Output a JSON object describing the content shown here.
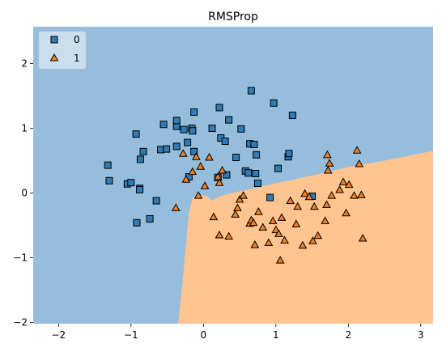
{
  "chart_data": {
    "type": "scatter",
    "title": "RMSProp",
    "xlabel": "",
    "ylabel": "",
    "xlim": [
      -2.35,
      3.17
    ],
    "ylim": [
      -2.02,
      2.57
    ],
    "x_ticks": [
      -2,
      -1,
      0,
      1,
      2,
      3
    ],
    "y_ticks": [
      -2,
      -1,
      0,
      1,
      2
    ],
    "x_tick_labels": [
      "−2",
      "−1",
      "0",
      "1",
      "2",
      "3"
    ],
    "y_tick_labels": [
      "−2",
      "−1",
      "0",
      "1",
      "2"
    ],
    "grid": false,
    "legend_position": "top-left",
    "region_colors": {
      "0": "#96bddc",
      "1": "#ffc490"
    },
    "decision_boundary": [
      [
        -0.35,
        -2.02
      ],
      [
        -0.28,
        -1.3
      ],
      [
        -0.25,
        -0.9
      ],
      [
        -0.2,
        -0.3
      ],
      [
        -0.15,
        -0.08
      ],
      [
        -0.08,
        -0.02
      ],
      [
        0.05,
        -0.05
      ],
      [
        0.12,
        -0.12
      ],
      [
        0.22,
        -0.05
      ],
      [
        0.4,
        0.0
      ],
      [
        0.6,
        0.05
      ],
      [
        1.0,
        0.15
      ],
      [
        1.5,
        0.27
      ],
      [
        2.0,
        0.4
      ],
      [
        2.5,
        0.5
      ],
      [
        3.17,
        0.65
      ]
    ],
    "series": [
      {
        "name": "0",
        "marker": "square",
        "color": "#2f7bb5",
        "points": [
          [
            -1.32,
            0.43
          ],
          [
            -1.3,
            0.19
          ],
          [
            -1.05,
            0.14
          ],
          [
            -1.0,
            0.16
          ],
          [
            -0.93,
            0.91
          ],
          [
            -0.92,
            -0.46
          ],
          [
            -0.88,
            0.07
          ],
          [
            -0.88,
            0.05
          ],
          [
            -0.87,
            0.52
          ],
          [
            -0.83,
            0.64
          ],
          [
            -0.74,
            -0.4
          ],
          [
            -0.65,
            -0.12
          ],
          [
            -0.59,
            0.67
          ],
          [
            -0.55,
            1.06
          ],
          [
            -0.51,
            0.68
          ],
          [
            -0.37,
            1.03
          ],
          [
            -0.37,
            1.12
          ],
          [
            -0.37,
            0.72
          ],
          [
            -0.27,
            0.98
          ],
          [
            -0.2,
            0.25
          ],
          [
            -0.22,
            0.78
          ],
          [
            -0.16,
            1.0
          ],
          [
            -0.15,
            0.96
          ],
          [
            -0.13,
            1.25
          ],
          [
            -0.13,
            0.64
          ],
          [
            0.12,
            1.0
          ],
          [
            0.2,
            0.24
          ],
          [
            0.22,
            1.32
          ],
          [
            0.24,
            0.85
          ],
          [
            0.3,
            0.8
          ],
          [
            0.32,
            0.28
          ],
          [
            0.35,
            1.13
          ],
          [
            0.45,
            0.55
          ],
          [
            0.52,
            0.99
          ],
          [
            0.58,
            0.34
          ],
          [
            0.62,
            0.31
          ],
          [
            0.64,
            0.76
          ],
          [
            0.66,
            1.58
          ],
          [
            0.7,
            0.75
          ],
          [
            0.72,
            0.3
          ],
          [
            0.73,
            0.59
          ],
          [
            0.75,
            0.15
          ],
          [
            0.92,
            -0.07
          ],
          [
            0.97,
            1.39
          ],
          [
            1.03,
            0.38
          ],
          [
            1.17,
            0.56
          ],
          [
            1.18,
            0.61
          ],
          [
            1.23,
            1.2
          ],
          [
            1.5,
            -0.05
          ]
        ]
      },
      {
        "name": "1",
        "marker": "triangle",
        "color": "#ee8128",
        "points": [
          [
            -0.38,
            -0.23
          ],
          [
            -0.28,
            0.61
          ],
          [
            -0.24,
            0.21
          ],
          [
            -0.15,
            0.33
          ],
          [
            -0.1,
            0.56
          ],
          [
            -0.07,
            -0.04
          ],
          [
            -0.04,
            0.41
          ],
          [
            0.02,
            0.11
          ],
          [
            0.08,
            0.55
          ],
          [
            0.14,
            -0.37
          ],
          [
            0.2,
            0.25
          ],
          [
            0.22,
            -0.65
          ],
          [
            0.22,
            0.16
          ],
          [
            0.26,
            0.35
          ],
          [
            0.35,
            -0.67
          ],
          [
            0.44,
            -0.33
          ],
          [
            0.47,
            -0.23
          ],
          [
            0.5,
            -0.1
          ],
          [
            0.55,
            -0.04
          ],
          [
            0.64,
            -0.47
          ],
          [
            0.66,
            -0.42
          ],
          [
            0.69,
            -0.46
          ],
          [
            0.71,
            -0.8
          ],
          [
            0.76,
            -0.29
          ],
          [
            0.82,
            -0.53
          ],
          [
            0.9,
            -0.77
          ],
          [
            0.96,
            -0.43
          ],
          [
            1.0,
            -0.57
          ],
          [
            1.04,
            -0.63
          ],
          [
            1.06,
            -1.04
          ],
          [
            1.08,
            -0.38
          ],
          [
            1.12,
            -0.73
          ],
          [
            1.2,
            -0.12
          ],
          [
            1.28,
            -0.48
          ],
          [
            1.3,
            -0.21
          ],
          [
            1.37,
            -0.81
          ],
          [
            1.4,
            -0.01
          ],
          [
            1.46,
            -0.06
          ],
          [
            1.51,
            -0.74
          ],
          [
            1.53,
            -0.21
          ],
          [
            1.58,
            -0.66
          ],
          [
            1.68,
            -0.43
          ],
          [
            1.7,
            -0.18
          ],
          [
            1.71,
            0.59
          ],
          [
            1.72,
            0.35
          ],
          [
            1.74,
            0.46
          ],
          [
            1.77,
            -0.04
          ],
          [
            1.88,
            0.05
          ],
          [
            1.93,
            0.17
          ],
          [
            1.97,
            -0.31
          ],
          [
            2.01,
            0.13
          ],
          [
            2.08,
            -0.04
          ],
          [
            2.12,
            0.66
          ],
          [
            2.15,
            0.45
          ],
          [
            2.18,
            -0.03
          ],
          [
            2.2,
            -0.7
          ]
        ]
      }
    ]
  }
}
